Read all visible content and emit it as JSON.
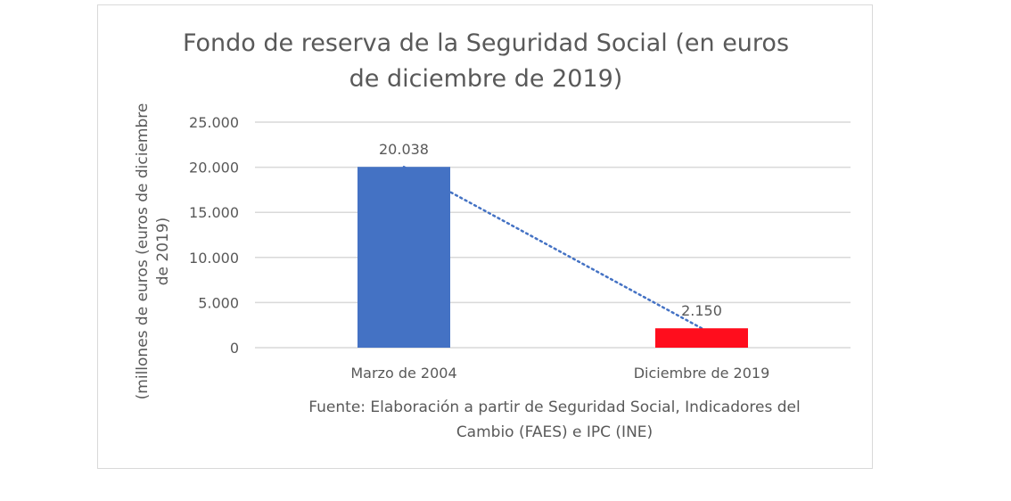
{
  "chart_data": {
    "type": "bar",
    "title": [
      "Fondo de reserva de la Seguridad Social (en euros",
      "de diciembre de 2019)"
    ],
    "ylabel": [
      "(millones de euros (euros de diciembre",
      "de 2019)"
    ],
    "xlabel": "",
    "categories": [
      "Marzo de 2004",
      "Diciembre de 2019"
    ],
    "values": [
      20038,
      2150
    ],
    "data_labels": [
      "20.038",
      "2.150"
    ],
    "bar_colors": [
      "#4472c4",
      "#ff0d1d"
    ],
    "ylim": [
      0,
      25000
    ],
    "yticks": [
      0,
      5000,
      10000,
      15000,
      20000,
      25000
    ],
    "ytick_labels": [
      "0",
      "5.000",
      "10.000",
      "15.000",
      "20.000",
      "25.000"
    ],
    "grid": true,
    "trendline": {
      "type": "linear",
      "style": "dotted",
      "color": "#4472c4"
    },
    "note": [
      "Fuente: Elaboración a partir de Seguridad Social, Indicadores del",
      "Cambio (FAES) e IPC (INE)"
    ]
  }
}
